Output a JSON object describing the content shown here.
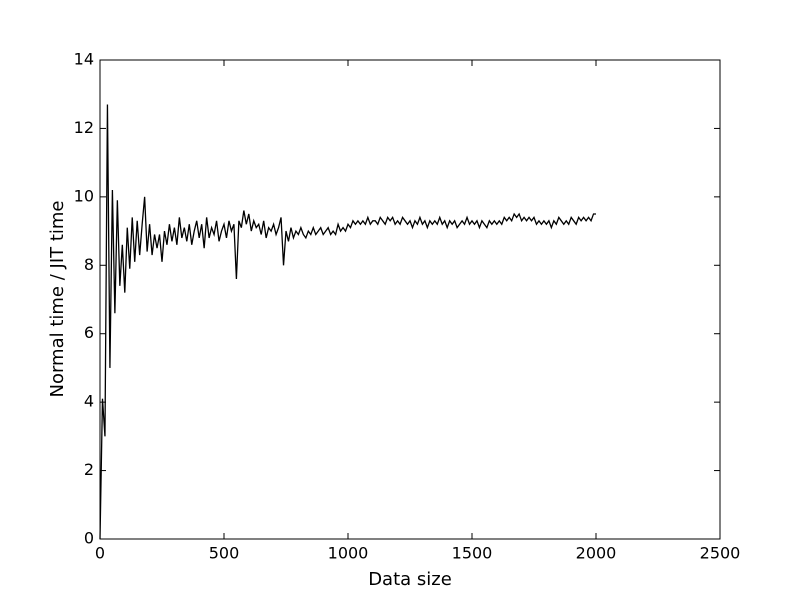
{
  "chart_data": {
    "type": "line",
    "xlabel": "Data size",
    "ylabel": "Normal time / JIT time",
    "xlim": [
      0,
      2500
    ],
    "ylim": [
      0,
      14
    ],
    "xticks": [
      0,
      500,
      1000,
      1500,
      2000,
      2500
    ],
    "yticks": [
      0,
      2,
      4,
      6,
      8,
      10,
      12,
      14
    ],
    "color": "#000000",
    "x": [
      0,
      10,
      20,
      30,
      40,
      50,
      60,
      70,
      80,
      90,
      100,
      110,
      120,
      130,
      140,
      150,
      160,
      170,
      180,
      190,
      200,
      210,
      220,
      230,
      240,
      250,
      260,
      270,
      280,
      290,
      300,
      310,
      320,
      330,
      340,
      350,
      360,
      370,
      380,
      390,
      400,
      410,
      420,
      430,
      440,
      450,
      460,
      470,
      480,
      490,
      500,
      510,
      520,
      530,
      540,
      550,
      560,
      570,
      580,
      590,
      600,
      610,
      620,
      630,
      640,
      650,
      660,
      670,
      680,
      690,
      700,
      710,
      720,
      730,
      740,
      750,
      760,
      770,
      780,
      790,
      800,
      810,
      820,
      830,
      840,
      850,
      860,
      870,
      880,
      890,
      900,
      910,
      920,
      930,
      940,
      950,
      960,
      970,
      980,
      990,
      1000,
      1010,
      1020,
      1030,
      1040,
      1050,
      1060,
      1070,
      1080,
      1090,
      1100,
      1110,
      1120,
      1130,
      1140,
      1150,
      1160,
      1170,
      1180,
      1190,
      1200,
      1210,
      1220,
      1230,
      1240,
      1250,
      1260,
      1270,
      1280,
      1290,
      1300,
      1310,
      1320,
      1330,
      1340,
      1350,
      1360,
      1370,
      1380,
      1390,
      1400,
      1410,
      1420,
      1430,
      1440,
      1450,
      1460,
      1470,
      1480,
      1490,
      1500,
      1510,
      1520,
      1530,
      1540,
      1550,
      1560,
      1570,
      1580,
      1590,
      1600,
      1610,
      1620,
      1630,
      1640,
      1650,
      1660,
      1670,
      1680,
      1690,
      1700,
      1710,
      1720,
      1730,
      1740,
      1750,
      1760,
      1770,
      1780,
      1790,
      1800,
      1810,
      1820,
      1830,
      1840,
      1850,
      1860,
      1870,
      1880,
      1890,
      1900,
      1910,
      1920,
      1930,
      1940,
      1950,
      1960,
      1970,
      1980,
      1990,
      2000
    ],
    "values": [
      0,
      4.1,
      3.0,
      12.7,
      5.0,
      10.2,
      6.6,
      9.9,
      7.4,
      8.6,
      7.2,
      9.1,
      7.9,
      9.4,
      8.1,
      9.3,
      8.3,
      9.2,
      10.0,
      8.4,
      9.2,
      8.3,
      8.9,
      8.5,
      8.9,
      8.1,
      9.0,
      8.6,
      9.2,
      8.7,
      9.1,
      8.6,
      9.4,
      8.8,
      9.1,
      8.7,
      9.2,
      8.6,
      9.0,
      9.3,
      8.8,
      9.2,
      8.5,
      9.4,
      8.8,
      9.1,
      8.9,
      9.3,
      8.7,
      9.0,
      9.2,
      8.8,
      9.3,
      9.0,
      9.2,
      7.6,
      9.3,
      9.1,
      9.6,
      9.2,
      9.5,
      9.0,
      9.3,
      9.1,
      9.2,
      8.9,
      9.3,
      8.8,
      9.1,
      9.0,
      9.2,
      8.9,
      9.1,
      9.4,
      8.0,
      9.0,
      8.7,
      9.1,
      8.8,
      9.0,
      8.9,
      9.1,
      8.9,
      8.8,
      9.0,
      8.9,
      9.1,
      8.9,
      9.0,
      9.1,
      8.9,
      9.0,
      9.1,
      8.9,
      9.0,
      8.9,
      9.2,
      9.0,
      9.1,
      9.0,
      9.2,
      9.1,
      9.3,
      9.2,
      9.3,
      9.2,
      9.3,
      9.2,
      9.4,
      9.2,
      9.3,
      9.3,
      9.2,
      9.4,
      9.3,
      9.2,
      9.4,
      9.3,
      9.4,
      9.2,
      9.3,
      9.2,
      9.4,
      9.3,
      9.2,
      9.3,
      9.1,
      9.3,
      9.2,
      9.4,
      9.2,
      9.3,
      9.1,
      9.3,
      9.2,
      9.3,
      9.2,
      9.4,
      9.2,
      9.3,
      9.1,
      9.3,
      9.2,
      9.3,
      9.1,
      9.2,
      9.3,
      9.2,
      9.4,
      9.2,
      9.3,
      9.2,
      9.3,
      9.1,
      9.3,
      9.2,
      9.1,
      9.3,
      9.2,
      9.3,
      9.2,
      9.3,
      9.2,
      9.4,
      9.3,
      9.4,
      9.3,
      9.5,
      9.4,
      9.5,
      9.3,
      9.4,
      9.3,
      9.4,
      9.3,
      9.4,
      9.2,
      9.3,
      9.2,
      9.3,
      9.2,
      9.3,
      9.1,
      9.3,
      9.2,
      9.4,
      9.3,
      9.2,
      9.3,
      9.2,
      9.4,
      9.3,
      9.2,
      9.4,
      9.3,
      9.4,
      9.3,
      9.4,
      9.3,
      9.5,
      9.5
    ]
  }
}
